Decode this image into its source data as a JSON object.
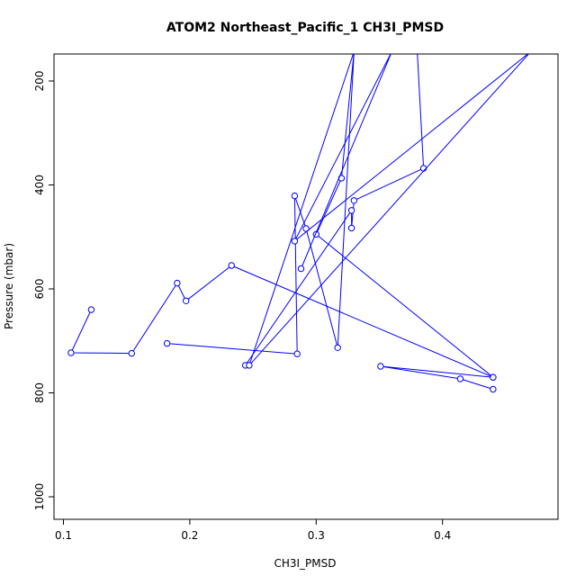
{
  "chart_data": {
    "type": "line",
    "title": "ATOM2 Northeast_Pacific_1 CH3I_PMSD",
    "xlabel": "CH3I_PMSD",
    "ylabel": "Pressure (mbar)",
    "xlim": [
      0.1,
      0.48
    ],
    "ylim": [
      1040,
      150
    ],
    "y_reversed": true,
    "grid": false,
    "x_ticks": [
      0.1,
      0.2,
      0.3,
      0.4
    ],
    "x_tick_labels": [
      "0.1",
      "0.2",
      "0.3",
      "0.4"
    ],
    "y_ticks": [
      200,
      400,
      600,
      800,
      1000
    ],
    "y_tick_labels": [
      "200",
      "400",
      "600",
      "800",
      "1000"
    ],
    "series": [
      {
        "color": "#0000ff",
        "marker": "open-circle",
        "x": [
          0.122,
          0.106,
          0.154,
          0.19,
          0.197,
          0.233,
          0.44,
          0.351,
          0.414,
          0.44
        ],
        "y": [
          640,
          723,
          724,
          589,
          623,
          555,
          770,
          749,
          773,
          793
        ]
      },
      {
        "color": "#0000ff",
        "marker": "open-circle",
        "x": [
          0.182,
          0.285,
          0.283,
          0.292,
          0.317,
          0.33,
          0.32,
          0.3,
          0.44
        ],
        "y": [
          705,
          725,
          421,
          484,
          713,
          143,
          387,
          495,
          770
        ]
      },
      {
        "color": "#0000ff",
        "marker": "open-circle",
        "x": [
          0.244,
          0.328,
          0.328,
          0.33,
          0.385,
          0.38
        ],
        "y": [
          747,
          449,
          483,
          430,
          368,
          143
        ]
      },
      {
        "color": "#0000ff",
        "marker": "open-circle",
        "x": [
          0.288,
          0.36,
          0.283,
          0.47,
          0.247,
          0.33
        ],
        "y": [
          561,
          143,
          508,
          143,
          747,
          143
        ]
      }
    ]
  }
}
